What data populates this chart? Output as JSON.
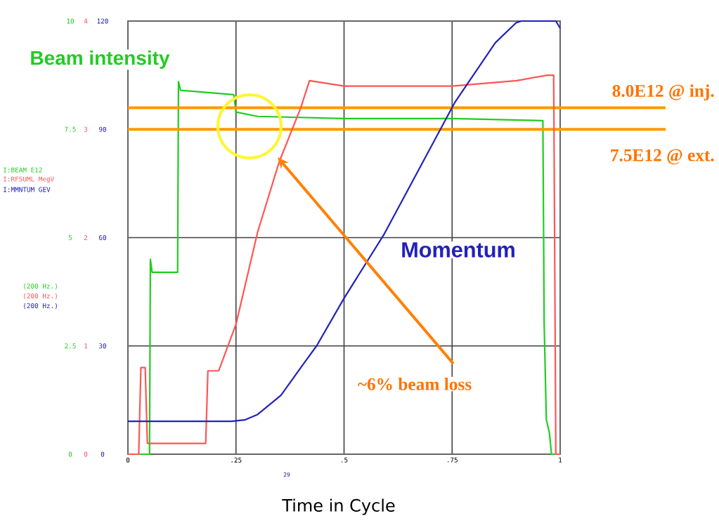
{
  "chart_data": {
    "type": "line",
    "xlabel": "Time in Cycle",
    "xlim": [
      0,
      1
    ],
    "xticks": [
      0,
      {
        "value": 0.25,
        "label": ".25"
      },
      {
        "value": 0.5,
        "label": ".5"
      },
      {
        "value": 0.75,
        "label": ".75"
      },
      1
    ],
    "ylim": [
      0,
      10
    ],
    "yticks": [
      0,
      2.5,
      5,
      7.5,
      10
    ],
    "y2lim": [
      0,
      4
    ],
    "y2ticks": [
      0,
      1,
      2,
      3,
      4
    ],
    "y3lim": [
      0,
      120
    ],
    "y3ticks": [
      0,
      30,
      60,
      90,
      120
    ],
    "grid": true,
    "series": [
      {
        "name": "Beam intensity",
        "color": "#22cc22",
        "axis": "y",
        "x": [
          0,
          0.05,
          0.052,
          0.056,
          0.115,
          0.117,
          0.122,
          0.245,
          0.25,
          0.3,
          0.5,
          0.75,
          0.96,
          0.963,
          0.968,
          0.975,
          0.98,
          1
        ],
        "values": [
          0,
          0,
          4.5,
          4.2,
          4.2,
          8.6,
          8.4,
          8.3,
          7.9,
          7.8,
          7.75,
          7.75,
          7.7,
          3,
          0.8,
          0.5,
          0,
          0
        ]
      },
      {
        "color": "#ff5555",
        "axis": "y2",
        "x": [
          0,
          0.025,
          0.03,
          0.04,
          0.045,
          0.05,
          0.18,
          0.185,
          0.21,
          0.25,
          0.3,
          0.35,
          0.4,
          0.42,
          0.5,
          0.75,
          0.9,
          0.97,
          0.985,
          0.99,
          1
        ],
        "values": [
          0,
          0,
          0.8,
          0.8,
          0.1,
          0.1,
          0.1,
          0.77,
          0.77,
          1.2,
          2.05,
          2.7,
          3.2,
          3.45,
          3.4,
          3.4,
          3.45,
          3.5,
          3.5,
          0,
          0
        ]
      },
      {
        "name": "Momentum",
        "color": "#2222bb",
        "axis": "y3",
        "x": [
          0,
          0.24,
          0.27,
          0.3,
          0.354,
          0.4,
          0.437,
          0.5,
          0.593,
          0.756,
          0.85,
          0.898,
          0.91,
          0.99,
          1
        ],
        "values": [
          9.1,
          9.1,
          9.5,
          11,
          16.3,
          24,
          30.1,
          43.2,
          61,
          97.4,
          114,
          119.5,
          120,
          120,
          118
        ]
      }
    ],
    "ref_lines": [
      {
        "axis": "y",
        "value": 8.0,
        "label": "8.0E12 @ inj.",
        "color": "#ff9900"
      },
      {
        "axis": "y",
        "value": 7.5,
        "label": "7.5E12 @ ext.",
        "color": "#ff9900"
      }
    ],
    "annotations": [
      "~6% beam loss",
      "I:BEAM E12",
      "I:RFSUML MegV",
      "I:MMNTUM GEV",
      "(200 Hz.)",
      "(200 Hz.)",
      "(200 Hz.)",
      "29"
    ]
  }
}
